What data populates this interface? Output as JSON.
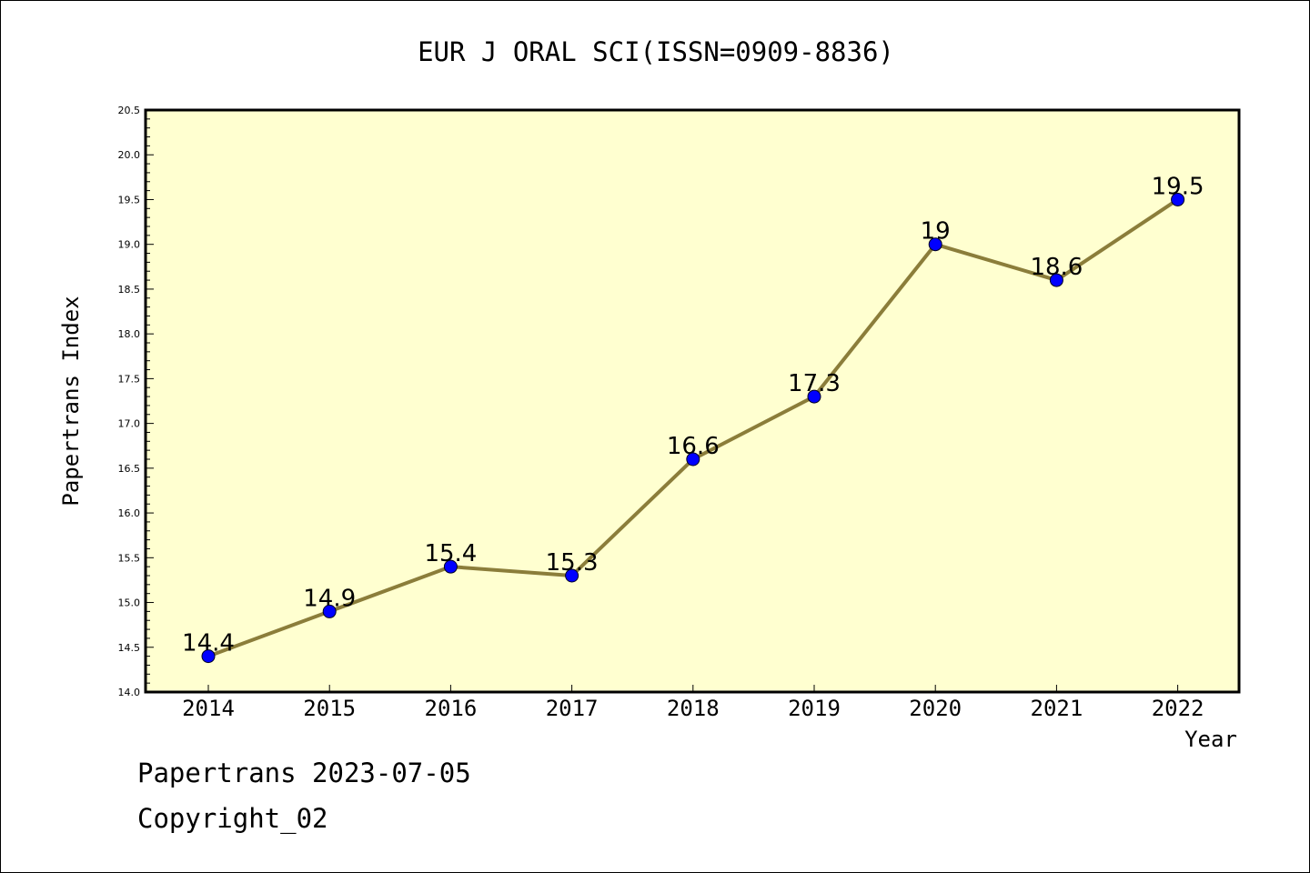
{
  "chart_data": {
    "type": "line",
    "title": "EUR J ORAL SCI(ISSN=0909-8836)",
    "xlabel": "Year",
    "ylabel": "Papertrans Index",
    "categories": [
      "2014",
      "2015",
      "2016",
      "2017",
      "2018",
      "2019",
      "2020",
      "2021",
      "2022"
    ],
    "series": [
      {
        "values": [
          14.4,
          14.9,
          15.4,
          15.3,
          16.6,
          17.3,
          19,
          18.6,
          19.5
        ]
      }
    ],
    "data_labels": [
      "14.4",
      "14.9",
      "15.4",
      "15.3",
      "16.6",
      "17.3",
      "19",
      "18.6",
      "19.5"
    ],
    "ylim": [
      14.0,
      20.5
    ],
    "yticks": [
      "14.0",
      "14.5",
      "15.0",
      "15.5",
      "16.0",
      "16.5",
      "17.0",
      "17.5",
      "18.0",
      "18.5",
      "19.0",
      "19.5",
      "20.0",
      "20.5"
    ],
    "plot_background": "#ffffd0",
    "line_color": "#8b7d3a",
    "marker_color": "#0000ff",
    "grid": false,
    "legend": false
  },
  "footer": {
    "line1": "Papertrans 2023-07-05",
    "line2": "Copyright_02"
  }
}
